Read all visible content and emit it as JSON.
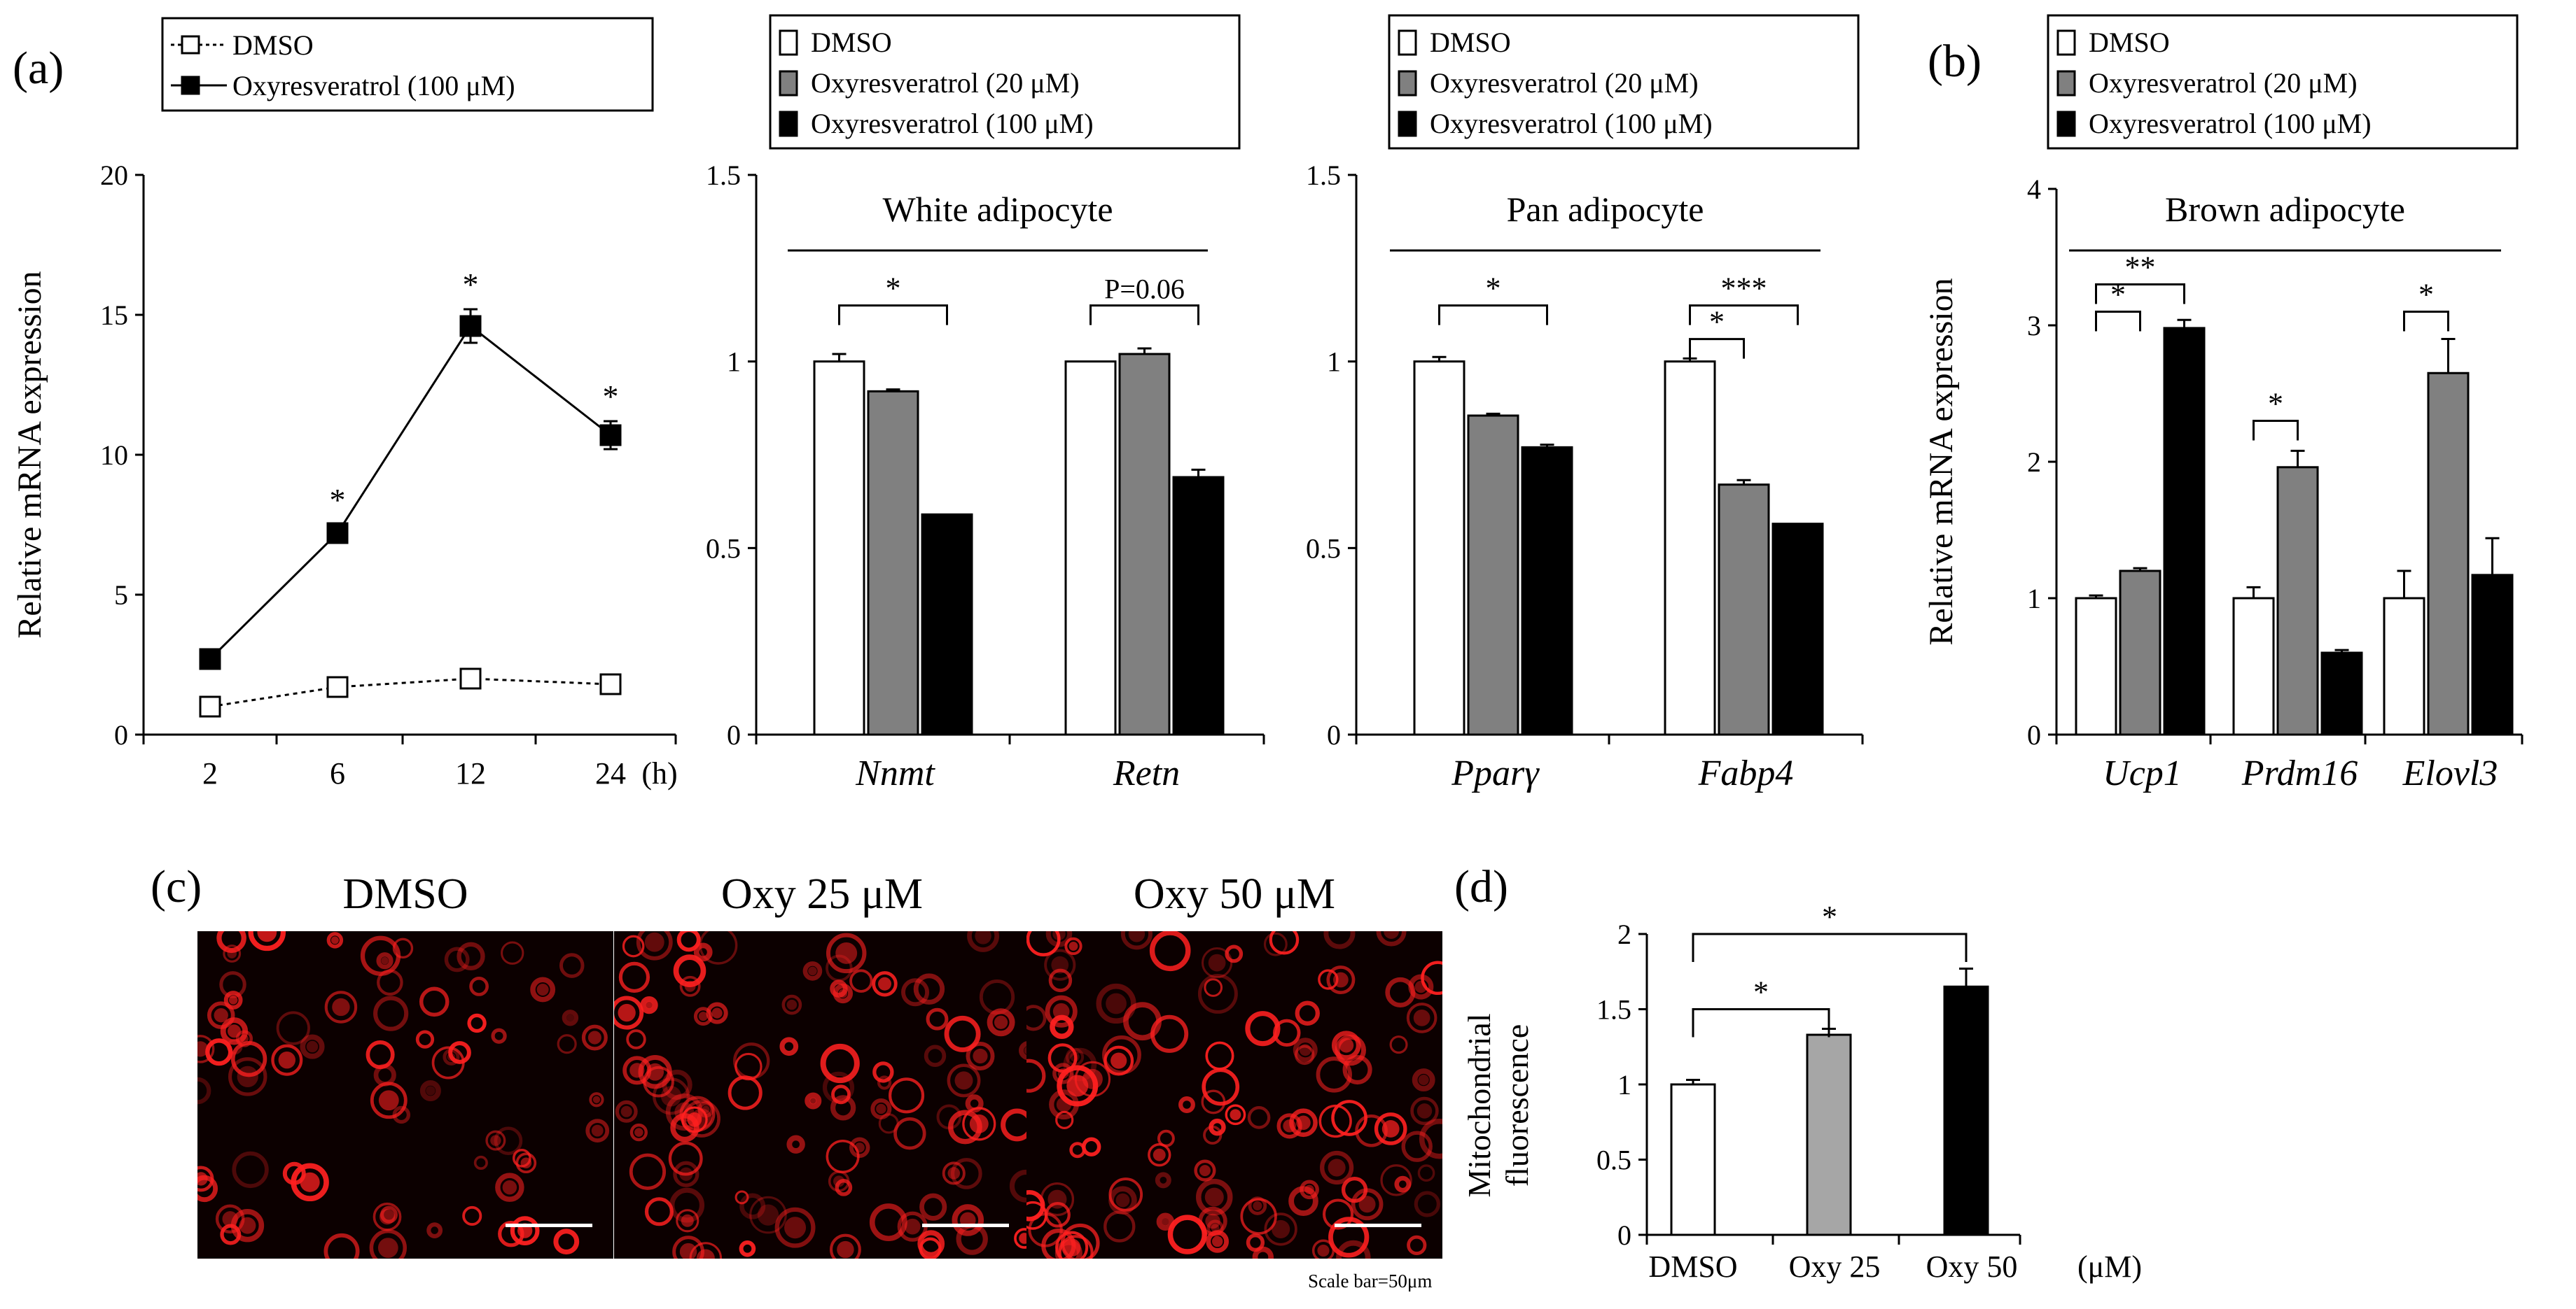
{
  "panel_labels": {
    "a": "(a)",
    "b": "(b)",
    "c": "(c)",
    "d": "(d)"
  },
  "legends": {
    "line": [
      "DMSO",
      "Oxyresveratrol (100 μM)"
    ],
    "bars": [
      "DMSO",
      "Oxyresveratrol (20 μM)",
      "Oxyresveratrol (100 μM)"
    ]
  },
  "colors": {
    "dmso": "#ffffff",
    "oxy20": "#808080",
    "oxy100": "#000000",
    "oxy25": "#a6a6a6",
    "oxy50": "#000000",
    "stain": "#ff2020",
    "stain_bg": "#0c0000"
  },
  "micrographs": {
    "titles": [
      "DMSO",
      "Oxy 25 μM",
      "Oxy 50 μM"
    ],
    "scale_note": "Scale bar=50μm"
  },
  "chart_data": [
    {
      "id": "timecourse",
      "type": "line",
      "title": "",
      "xlabel": "(h)",
      "ylabel": "Relative  mRNA expression",
      "categories": [
        "2",
        "6",
        "12",
        "24"
      ],
      "ylim": [
        0,
        20
      ],
      "yticks": [
        "0",
        "5",
        "10",
        "15",
        "20"
      ],
      "series": [
        {
          "name": "DMSO",
          "values": [
            1.0,
            1.7,
            2.0,
            1.8
          ],
          "errors": [
            0.05,
            0.1,
            0.1,
            0.1
          ],
          "style": "dotted-open-square"
        },
        {
          "name": "Oxyresveratrol (100 μM)",
          "values": [
            2.7,
            7.2,
            14.6,
            10.7
          ],
          "errors": [
            0.2,
            0.3,
            0.6,
            0.5
          ],
          "style": "solid-filled-square"
        }
      ],
      "annotations": [
        {
          "category": "6",
          "text": "*"
        },
        {
          "category": "12",
          "text": "*"
        },
        {
          "category": "24",
          "text": "*"
        }
      ]
    },
    {
      "id": "white",
      "type": "bar",
      "title": "White adipocyte",
      "categories": [
        "Nnmt",
        "Retn"
      ],
      "ylim": [
        0,
        1.5
      ],
      "yticks": [
        "0",
        "0.5",
        "1",
        "1.5"
      ],
      "series": [
        {
          "name": "DMSO",
          "values": [
            1.0,
            1.0
          ],
          "errors": [
            0.02,
            0.0
          ]
        },
        {
          "name": "Oxyresveratrol (20 μM)",
          "values": [
            0.92,
            1.02
          ],
          "errors": [
            0.005,
            0.015
          ]
        },
        {
          "name": "Oxyresveratrol (100 μM)",
          "values": [
            0.59,
            0.69
          ],
          "errors": [
            0.0,
            0.02
          ]
        }
      ],
      "annotations": [
        {
          "category": "Nnmt",
          "from": 0,
          "to": 2,
          "level": 1.15,
          "text": "*"
        },
        {
          "category": "Retn",
          "from": 0,
          "to": 2,
          "level": 1.15,
          "text": "P=0.06"
        }
      ]
    },
    {
      "id": "pan",
      "type": "bar",
      "title": "Pan adipocyte",
      "categories": [
        "Pparγ",
        "Fabp4"
      ],
      "ylim": [
        0,
        1.5
      ],
      "yticks": [
        "0",
        "0.5",
        "1",
        "1.5"
      ],
      "series": [
        {
          "name": "DMSO",
          "values": [
            1.0,
            1.0
          ],
          "errors": [
            0.012,
            0.008
          ]
        },
        {
          "name": "Oxyresveratrol (20 μM)",
          "values": [
            0.855,
            0.67
          ],
          "errors": [
            0.005,
            0.012
          ]
        },
        {
          "name": "Oxyresveratrol (100 μM)",
          "values": [
            0.77,
            0.565
          ],
          "errors": [
            0.007,
            0.0
          ]
        }
      ],
      "annotations": [
        {
          "category": "Pparγ",
          "from": 0,
          "to": 2,
          "level": 1.15,
          "text": "*"
        },
        {
          "category": "Fabp4",
          "from": 0,
          "to": 1,
          "level": 1.06,
          "text": "*"
        },
        {
          "category": "Fabp4",
          "from": 0,
          "to": 2,
          "level": 1.15,
          "text": "***"
        }
      ]
    },
    {
      "id": "brown",
      "type": "bar",
      "title": "Brown adipocyte",
      "ylabel": "Relative  mRNA expression",
      "categories": [
        "Ucp1",
        "Prdm16",
        "Elovl3"
      ],
      "ylim": [
        0,
        4
      ],
      "yticks": [
        "0",
        "1",
        "2",
        "3",
        "4"
      ],
      "series": [
        {
          "name": "DMSO",
          "values": [
            1.0,
            1.0,
            1.0
          ],
          "errors": [
            0.02,
            0.08,
            0.2
          ]
        },
        {
          "name": "Oxyresveratrol (20 μM)",
          "values": [
            1.2,
            1.96,
            2.65
          ],
          "errors": [
            0.02,
            0.12,
            0.25
          ]
        },
        {
          "name": "Oxyresveratrol (100 μM)",
          "values": [
            2.98,
            0.6,
            1.17
          ],
          "errors": [
            0.06,
            0.02,
            0.27
          ]
        }
      ],
      "annotations": [
        {
          "category": "Ucp1",
          "from": 0,
          "to": 1,
          "level": 3.1,
          "text": "*"
        },
        {
          "category": "Ucp1",
          "from": 0,
          "to": 2,
          "level": 3.3,
          "text": "**"
        },
        {
          "category": "Prdm16",
          "from": 0,
          "to": 1,
          "level": 2.3,
          "text": "*"
        },
        {
          "category": "Elovl3",
          "from": 0,
          "to": 1,
          "level": 3.1,
          "text": "*"
        }
      ]
    },
    {
      "id": "mito",
      "type": "bar",
      "title": "",
      "ylabel": "Mitochondrial fluorescence",
      "xlabel": "(μM)",
      "categories": [
        "DMSO",
        "Oxy  25",
        "Oxy  50"
      ],
      "ylim": [
        0,
        2
      ],
      "yticks": [
        "0",
        "0.5",
        "1",
        "1.5",
        "2"
      ],
      "values": [
        1.0,
        1.33,
        1.65
      ],
      "errors": [
        0.03,
        0.04,
        0.12
      ],
      "annotations": [
        {
          "from": 0,
          "to": 1,
          "level": 1.5,
          "text": "*"
        },
        {
          "from": 0,
          "to": 2,
          "level": 2.0,
          "text": "*"
        }
      ]
    }
  ]
}
